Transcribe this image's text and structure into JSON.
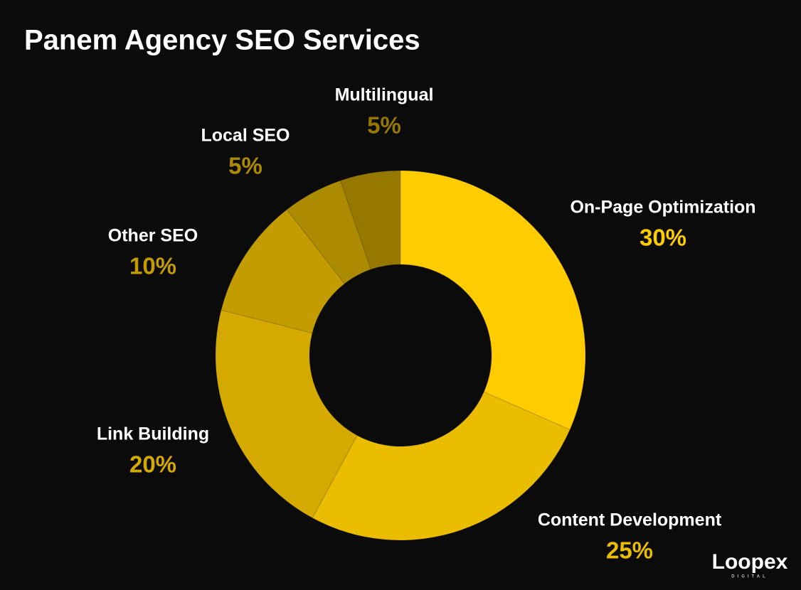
{
  "chart_data": {
    "type": "pie",
    "title": "Panem Agency SEO Services",
    "categories": [
      "On-Page Optimization",
      "Content Development",
      "Link Building",
      "Other SEO",
      "Local SEO",
      "Multilingual"
    ],
    "values": [
      30,
      25,
      20,
      10,
      5,
      5
    ],
    "value_labels": [
      "30%",
      "25%",
      "20%",
      "10%",
      "5%",
      "5%"
    ],
    "colors": [
      "#ffcc00",
      "#ebbd00",
      "#d4aa00",
      "#c29c00",
      "#ad8b00",
      "#967800"
    ]
  },
  "logo": {
    "name": "Loopex",
    "tagline": "DIGITAL"
  }
}
